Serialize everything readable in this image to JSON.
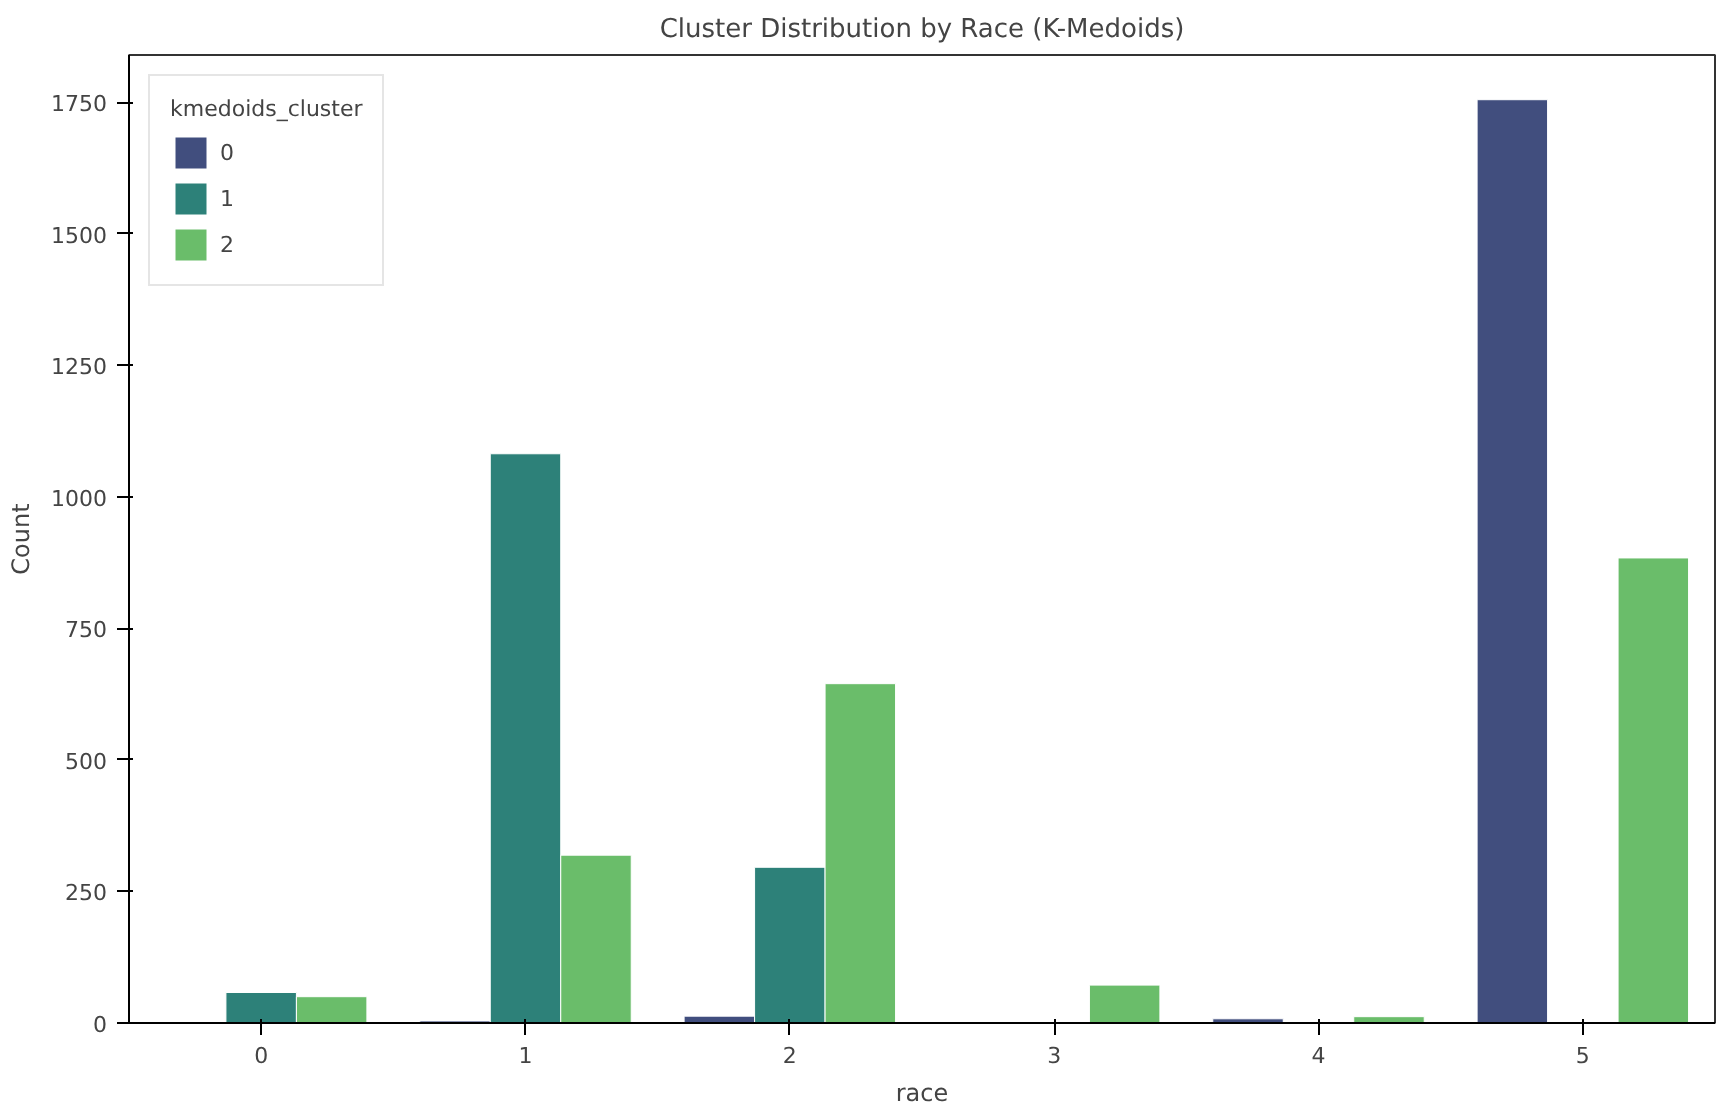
{
  "chart_data": {
    "type": "bar",
    "title": "Cluster Distribution by Race (K-Medoids)",
    "xlabel": "race",
    "ylabel": "Count",
    "legend_title": "kmedoids_cluster",
    "categories": [
      "0",
      "1",
      "2",
      "3",
      "4",
      "5"
    ],
    "series": [
      {
        "name": "0",
        "color": "#414e7e",
        "values": [
          null,
          4,
          13,
          null,
          8,
          1755
        ]
      },
      {
        "name": "1",
        "color": "#2d8179",
        "values": [
          58,
          1082,
          296,
          null,
          2,
          null
        ]
      },
      {
        "name": "2",
        "color": "#6abd6a",
        "values": [
          50,
          319,
          645,
          72,
          12,
          884
        ]
      }
    ],
    "ylim": [
      0,
      1840
    ],
    "yticks": [
      0,
      250,
      500,
      750,
      1000,
      1250,
      1500,
      1750
    ],
    "grid": false,
    "legend": "top left"
  }
}
